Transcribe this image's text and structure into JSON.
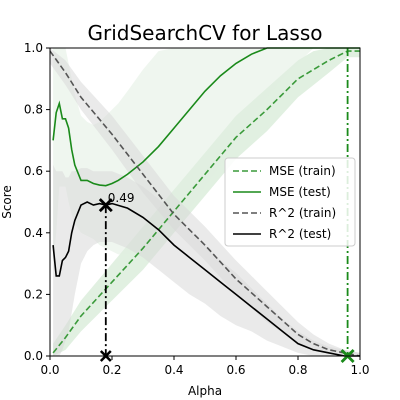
{
  "chart_data": {
    "type": "line",
    "title": "GridSearchCV for Lasso",
    "xlabel": "Alpha",
    "ylabel": "Score",
    "xlim": [
      0.0,
      1.0
    ],
    "ylim": [
      0.0,
      1.0
    ],
    "xticks": [
      "0.0",
      "0.2",
      "0.4",
      "0.6",
      "0.8",
      "1.0"
    ],
    "yticks": [
      "0.0",
      "0.2",
      "0.4",
      "0.6",
      "0.8",
      "1.0"
    ],
    "grid": false,
    "legend_position": "center-right",
    "series": [
      {
        "name": "MSE (train)",
        "color": "#3a9a3a",
        "style": "dashed",
        "x": [
          0.01,
          0.05,
          0.1,
          0.2,
          0.3,
          0.4,
          0.5,
          0.6,
          0.7,
          0.8,
          0.85,
          0.9,
          0.96,
          1.0
        ],
        "y": [
          0.01,
          0.06,
          0.13,
          0.24,
          0.35,
          0.47,
          0.59,
          0.71,
          0.8,
          0.9,
          0.93,
          0.96,
          0.99,
          0.99
        ],
        "band_upper": [
          0.04,
          0.1,
          0.18,
          0.3,
          0.42,
          0.54,
          0.66,
          0.78,
          0.87,
          0.96,
          0.99,
          1.0,
          1.0,
          1.0
        ],
        "band_lower": [
          0.0,
          0.02,
          0.08,
          0.18,
          0.28,
          0.4,
          0.52,
          0.64,
          0.73,
          0.84,
          0.88,
          0.92,
          0.97,
          0.97
        ],
        "band_color": "#c9e4c9"
      },
      {
        "name": "MSE (test)",
        "color": "#1a8a1a",
        "style": "solid",
        "x": [
          0.01,
          0.02,
          0.03,
          0.04,
          0.05,
          0.06,
          0.07,
          0.08,
          0.1,
          0.12,
          0.14,
          0.16,
          0.18,
          0.2,
          0.22,
          0.25,
          0.3,
          0.35,
          0.4,
          0.45,
          0.5,
          0.55,
          0.6,
          0.65,
          0.7,
          0.75,
          0.8,
          0.85,
          0.9,
          0.95,
          1.0
        ],
        "y": [
          0.7,
          0.79,
          0.82,
          0.77,
          0.77,
          0.74,
          0.67,
          0.62,
          0.57,
          0.57,
          0.56,
          0.555,
          0.553,
          0.56,
          0.57,
          0.59,
          0.63,
          0.68,
          0.74,
          0.8,
          0.86,
          0.91,
          0.95,
          0.98,
          1.0,
          1.0,
          1.0,
          1.0,
          1.0,
          1.0,
          1.0
        ],
        "band_upper": [
          1.0,
          1.0,
          1.0,
          1.0,
          1.0,
          0.95,
          0.9,
          0.85,
          0.78,
          0.76,
          0.75,
          0.76,
          0.78,
          0.8,
          0.82,
          0.86,
          0.93,
          0.99,
          1.0,
          1.0,
          1.0,
          1.0,
          1.0,
          1.0,
          1.0,
          1.0,
          1.0,
          1.0,
          1.0,
          1.0,
          1.0
        ],
        "band_lower": [
          0.3,
          0.4,
          0.55,
          0.55,
          0.55,
          0.5,
          0.46,
          0.43,
          0.4,
          0.39,
          0.38,
          0.36,
          0.35,
          0.34,
          0.33,
          0.33,
          0.34,
          0.37,
          0.42,
          0.48,
          0.55,
          0.62,
          0.7,
          0.77,
          0.84,
          0.9,
          0.95,
          1.0,
          1.0,
          1.0,
          1.0
        ],
        "band_color": "#e1efe1"
      },
      {
        "name": "R^2 (train)",
        "color": "#555555",
        "style": "dashed",
        "x": [
          0.0,
          0.05,
          0.1,
          0.2,
          0.3,
          0.4,
          0.5,
          0.6,
          0.7,
          0.8,
          0.85,
          0.9,
          0.95,
          1.0
        ],
        "y": [
          0.99,
          0.92,
          0.84,
          0.72,
          0.59,
          0.46,
          0.36,
          0.25,
          0.16,
          0.07,
          0.04,
          0.02,
          0.01,
          0.0
        ],
        "band_upper": [
          1.0,
          0.96,
          0.89,
          0.78,
          0.65,
          0.52,
          0.42,
          0.31,
          0.21,
          0.11,
          0.07,
          0.04,
          0.02,
          0.01
        ],
        "band_lower": [
          0.95,
          0.88,
          0.8,
          0.67,
          0.53,
          0.41,
          0.31,
          0.2,
          0.11,
          0.04,
          0.02,
          0.01,
          0.0,
          0.0
        ],
        "band_color": "#d8d8d8"
      },
      {
        "name": "R^2 (test)",
        "color": "#000000",
        "style": "solid",
        "x": [
          0.01,
          0.02,
          0.03,
          0.04,
          0.05,
          0.06,
          0.07,
          0.08,
          0.1,
          0.12,
          0.14,
          0.16,
          0.18,
          0.2,
          0.25,
          0.3,
          0.35,
          0.4,
          0.45,
          0.5,
          0.55,
          0.6,
          0.65,
          0.7,
          0.75,
          0.8,
          0.85,
          0.9,
          0.95,
          1.0
        ],
        "y": [
          0.36,
          0.26,
          0.26,
          0.31,
          0.32,
          0.34,
          0.4,
          0.44,
          0.49,
          0.5,
          0.49,
          0.495,
          0.49,
          0.495,
          0.48,
          0.45,
          0.41,
          0.36,
          0.32,
          0.28,
          0.24,
          0.2,
          0.16,
          0.12,
          0.08,
          0.04,
          0.02,
          0.01,
          0.0,
          0.0
        ],
        "band_upper": [
          0.62,
          0.6,
          0.6,
          0.6,
          0.58,
          0.58,
          0.6,
          0.6,
          0.61,
          0.61,
          0.6,
          0.6,
          0.6,
          0.6,
          0.58,
          0.55,
          0.51,
          0.46,
          0.41,
          0.36,
          0.31,
          0.27,
          0.22,
          0.17,
          0.12,
          0.08,
          0.05,
          0.03,
          0.02,
          0.01
        ],
        "band_lower": [
          0.0,
          0.0,
          0.0,
          0.02,
          0.05,
          0.08,
          0.14,
          0.2,
          0.3,
          0.34,
          0.36,
          0.37,
          0.37,
          0.37,
          0.35,
          0.32,
          0.28,
          0.24,
          0.2,
          0.17,
          0.13,
          0.1,
          0.08,
          0.05,
          0.03,
          0.01,
          0.0,
          0.0,
          0.0,
          0.0
        ],
        "band_color": "#d9d9d9"
      }
    ],
    "markers": [
      {
        "series": "R^2 (test)",
        "x": 0.18,
        "y": 0.49,
        "label": "0.49",
        "color": "#000000"
      },
      {
        "series": "MSE (test)",
        "x": 0.96,
        "y": 0.0,
        "label": "",
        "color": "#1a8a1a"
      }
    ],
    "vlines": [
      {
        "x": 0.18,
        "y_top": 0.49,
        "color": "#000000"
      },
      {
        "x": 0.96,
        "y_top": 1.0,
        "color": "#1a8a1a"
      }
    ]
  }
}
